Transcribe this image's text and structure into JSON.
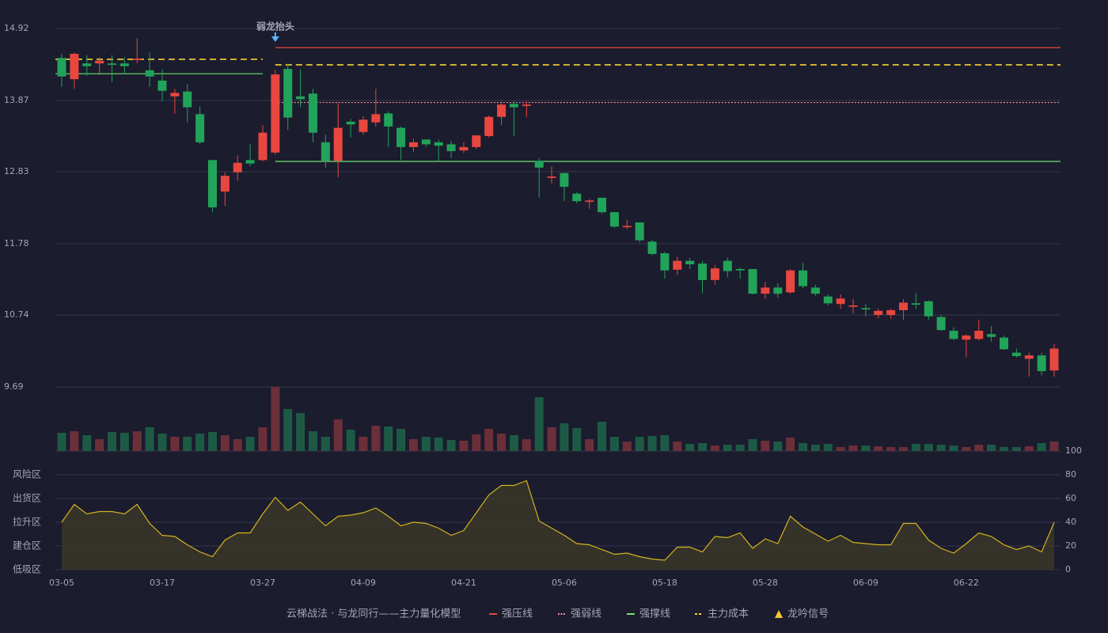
{
  "chart_data": [
    {
      "type": "candlestick",
      "categories": [
        "03-05",
        null,
        null,
        null,
        null,
        null,
        null,
        null,
        "03-17",
        null,
        null,
        null,
        null,
        null,
        null,
        null,
        "03-27",
        null,
        null,
        null,
        null,
        null,
        null,
        null,
        "04-09",
        null,
        null,
        null,
        null,
        null,
        null,
        null,
        "04-21",
        null,
        null,
        null,
        null,
        null,
        null,
        null,
        "05-06",
        null,
        null,
        null,
        null,
        null,
        null,
        null,
        "05-18",
        null,
        null,
        null,
        null,
        null,
        null,
        null,
        "05-28",
        null,
        null,
        null,
        null,
        null,
        null,
        null,
        "06-09",
        null,
        null,
        null,
        null,
        null,
        null,
        null,
        "06-22",
        null,
        null,
        null,
        null,
        null,
        null,
        null
      ],
      "open": [
        14.49,
        14.18,
        14.41,
        14.41,
        14.41,
        14.41,
        14.46,
        14.31,
        14.16,
        13.93,
        14.0,
        13.67,
        13.0,
        12.54,
        12.82,
        13.0,
        13.0,
        13.11,
        14.33,
        13.93,
        13.97,
        13.26,
        12.99,
        13.56,
        13.41,
        13.55,
        13.68,
        13.47,
        13.19,
        13.3,
        13.26,
        13.23,
        13.14,
        13.19,
        13.35,
        13.63,
        13.82,
        13.79,
        12.99,
        12.74,
        12.81,
        12.51,
        12.39,
        12.45,
        12.24,
        12.02,
        12.09,
        11.81,
        11.64,
        11.4,
        11.53,
        11.49,
        11.25,
        11.53,
        11.41,
        11.41,
        11.05,
        11.14,
        11.07,
        11.39,
        11.14,
        11.01,
        10.9,
        10.86,
        10.84,
        10.74,
        10.74,
        10.81,
        10.91,
        10.94,
        10.71,
        10.51,
        10.38,
        10.39,
        10.46,
        10.41,
        10.19,
        10.1,
        10.15,
        9.93
      ],
      "high": [
        14.55,
        14.57,
        14.53,
        14.5,
        14.53,
        14.5,
        14.78,
        14.57,
        14.32,
        14.04,
        14.11,
        13.78,
        13.0,
        12.82,
        13.07,
        13.23,
        13.51,
        14.32,
        14.41,
        14.32,
        14.04,
        13.37,
        13.83,
        13.6,
        13.64,
        14.04,
        13.71,
        13.49,
        13.31,
        13.3,
        13.3,
        13.28,
        13.26,
        13.36,
        13.65,
        13.86,
        13.86,
        13.86,
        13.03,
        12.91,
        12.82,
        12.53,
        12.43,
        12.45,
        12.24,
        12.13,
        12.09,
        11.84,
        11.66,
        11.59,
        11.57,
        11.53,
        11.47,
        11.58,
        11.43,
        11.41,
        11.22,
        11.2,
        11.41,
        11.5,
        11.18,
        11.04,
        11.04,
        10.97,
        10.9,
        10.83,
        10.83,
        10.97,
        11.06,
        10.95,
        10.74,
        10.56,
        10.46,
        10.67,
        10.58,
        10.44,
        10.25,
        10.19,
        10.19,
        10.32
      ],
      "low": [
        14.07,
        14.04,
        14.23,
        14.24,
        14.14,
        14.27,
        14.41,
        14.07,
        13.86,
        13.68,
        13.55,
        13.23,
        12.24,
        12.33,
        12.7,
        12.91,
        12.98,
        13.08,
        13.44,
        13.77,
        13.26,
        12.89,
        12.75,
        13.33,
        13.37,
        13.49,
        13.19,
        13.0,
        13.12,
        13.19,
        12.98,
        13.03,
        13.1,
        13.16,
        13.33,
        13.51,
        13.35,
        13.63,
        12.45,
        12.66,
        12.4,
        12.37,
        12.29,
        12.22,
        12.01,
        11.99,
        11.8,
        11.61,
        11.27,
        11.32,
        11.41,
        11.06,
        11.18,
        11.29,
        11.27,
        11.04,
        10.97,
        10.99,
        11.05,
        11.13,
        11.02,
        10.88,
        10.83,
        10.76,
        10.72,
        10.69,
        10.68,
        10.67,
        10.83,
        10.67,
        10.51,
        10.37,
        10.12,
        10.37,
        10.35,
        10.23,
        10.12,
        9.84,
        9.86,
        9.84
      ],
      "close": [
        14.22,
        14.55,
        14.37,
        14.45,
        14.39,
        14.37,
        14.48,
        14.22,
        14.01,
        13.98,
        13.77,
        13.26,
        12.31,
        12.77,
        12.96,
        12.95,
        13.4,
        14.25,
        13.62,
        13.89,
        13.4,
        12.99,
        13.47,
        13.52,
        13.59,
        13.67,
        13.49,
        13.19,
        13.26,
        13.23,
        13.21,
        13.13,
        13.19,
        13.36,
        13.63,
        13.81,
        13.77,
        13.81,
        12.89,
        12.76,
        12.61,
        12.4,
        12.41,
        12.24,
        12.03,
        12.04,
        11.83,
        11.63,
        11.39,
        11.53,
        11.48,
        11.25,
        11.42,
        11.38,
        11.39,
        11.05,
        11.14,
        11.05,
        11.39,
        11.16,
        11.05,
        10.91,
        10.98,
        10.88,
        10.82,
        10.8,
        10.81,
        10.92,
        10.89,
        10.72,
        10.52,
        10.39,
        10.44,
        10.51,
        10.42,
        10.24,
        10.14,
        10.15,
        9.92,
        10.25
      ],
      "up_color": "#e8473f",
      "down_color": "#22a35a",
      "ylim": [
        9.69,
        14.92
      ],
      "yticks": [
        14.92,
        13.87,
        12.83,
        11.78,
        10.74,
        9.69
      ],
      "grid": true,
      "annotation": {
        "text": "弱龙抬头",
        "index": 17,
        "color": "#5ab4ff"
      },
      "levels": [
        {
          "name": "强压线",
          "color": "#e8473f",
          "dash": "solid",
          "segments": [
            {
              "start": 17,
              "end": 79,
              "value": 14.64
            }
          ]
        },
        {
          "name": "强弱线",
          "color": "#ff8a9a",
          "dash": "dotted",
          "segments": [
            {
              "start": 17,
              "end": 79,
              "value": 13.84
            }
          ]
        },
        {
          "name": "强撑线",
          "color": "#6fe36f",
          "dash": "solid",
          "segments": [
            {
              "start": 0,
              "end": 16,
              "value": 14.26
            },
            {
              "start": 17,
              "end": 79,
              "value": 12.98
            }
          ]
        },
        {
          "name": "主力成本",
          "color": "#f5d430",
          "dash": "dashed",
          "segments": [
            {
              "start": 0,
              "end": 16,
              "value": 14.47
            },
            {
              "start": 17,
              "end": 79,
              "value": 14.39
            }
          ]
        }
      ],
      "signal": {
        "name": "龙吟信号",
        "color": "#f5c830"
      },
      "legend_title": "云梯战法 · 与龙同行——主力量化模型",
      "legend_title_color": "#e8c060"
    },
    {
      "type": "bar",
      "values": [
        23,
        25,
        20,
        15,
        24,
        23,
        25,
        30,
        22,
        18,
        18,
        22,
        24,
        20,
        15,
        18,
        30,
        81,
        53,
        48,
        25,
        18,
        40,
        27,
        18,
        32,
        31,
        28,
        15,
        18,
        17,
        14,
        13,
        21,
        28,
        22,
        20,
        15,
        68,
        30,
        35,
        29,
        15,
        37,
        18,
        12,
        18,
        19,
        20,
        12,
        9,
        10,
        7,
        8,
        8,
        15,
        13,
        12,
        17,
        10,
        8,
        9,
        5,
        7,
        7,
        6,
        5,
        5,
        9,
        9,
        8,
        7,
        5,
        8,
        8,
        5,
        5,
        6,
        10,
        12
      ],
      "vlim": [
        0,
        81
      ],
      "up_color": "#6b2f3a",
      "down_color": "#1d5a45"
    },
    {
      "type": "line",
      "values": [
        40,
        55,
        47,
        49,
        49,
        47,
        55,
        39,
        29,
        28,
        21,
        15,
        11,
        25,
        31,
        31,
        47,
        61,
        50,
        57,
        47,
        37,
        45,
        46,
        48,
        52,
        45,
        37,
        40,
        39,
        35,
        29,
        33,
        48,
        63,
        71,
        71,
        75,
        41,
        35,
        29,
        22,
        21,
        17,
        13,
        14,
        11,
        9,
        8,
        19,
        19,
        15,
        28,
        27,
        31,
        18,
        26,
        22,
        45,
        36,
        30,
        24,
        29,
        23,
        22,
        21,
        21,
        39,
        39,
        25,
        18,
        14,
        22,
        31,
        28,
        21,
        17,
        20,
        15,
        40
      ],
      "color": "#d4b420",
      "fill": "#3a3628",
      "ylim": [
        0,
        100
      ],
      "yticks": [
        0,
        20,
        40,
        60,
        80,
        100
      ],
      "ytick_colors": [
        "#ff4040",
        "#f0a23a",
        "#3f8cff",
        "#e23de0",
        "#f0a23a",
        "#3fe04a"
      ],
      "zones": [
        {
          "value": 80,
          "label": "风险区",
          "color": "#f0a23a"
        },
        {
          "value": 60,
          "label": "出货区",
          "color": "#e23de0"
        },
        {
          "value": 40,
          "label": "拉升区",
          "color": "#3f8cff"
        },
        {
          "value": 20,
          "label": "建仓区",
          "color": "#ff5a4a"
        },
        {
          "value": 0,
          "label": "低吸区",
          "color": "#ff4040"
        }
      ]
    }
  ]
}
